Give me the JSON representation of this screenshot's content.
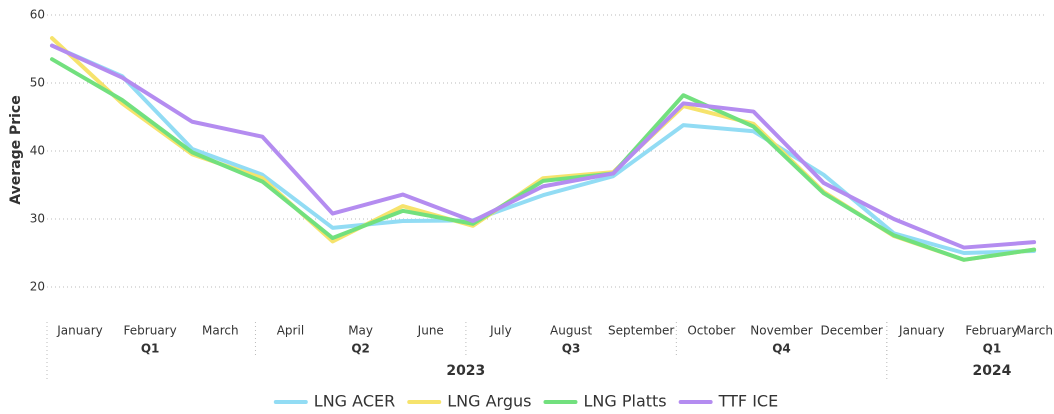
{
  "chart_data": {
    "type": "line",
    "y_label": "Average Price",
    "categories": [
      "January",
      "February",
      "March",
      "April",
      "May",
      "June",
      "July",
      "August",
      "September",
      "October",
      "November",
      "December",
      "January",
      "February",
      "March"
    ],
    "quarters": [
      {
        "label": "Q1",
        "start": 0,
        "end": 2
      },
      {
        "label": "Q2",
        "start": 3,
        "end": 5
      },
      {
        "label": "Q3",
        "start": 6,
        "end": 8
      },
      {
        "label": "Q4",
        "start": 9,
        "end": 11
      },
      {
        "label": "Q1",
        "start": 12,
        "end": 14
      }
    ],
    "years": [
      {
        "label": "2023",
        "start": 0,
        "end": 11
      },
      {
        "label": "2024",
        "start": 12,
        "end": 14
      }
    ],
    "series": [
      {
        "name": "LNG ACER",
        "color": "#92dcf4",
        "values": [
          55.5,
          51,
          40.3,
          36.5,
          28.7,
          29.7,
          29.8,
          33.5,
          36.3,
          43.8,
          42.9,
          36.5,
          27.9,
          25,
          25.3
        ]
      },
      {
        "name": "LNG Argus",
        "color": "#f6e36c",
        "values": [
          56.6,
          47,
          39.5,
          36,
          26.7,
          31.9,
          29,
          36,
          36.9,
          46.6,
          44,
          34,
          27.5,
          24,
          25.5
        ]
      },
      {
        "name": "LNG Platts",
        "color": "#72e07e",
        "values": [
          53.5,
          47.5,
          39.8,
          35.5,
          27.2,
          31.2,
          29.3,
          35.6,
          36.7,
          48.2,
          43.6,
          33.8,
          27.6,
          24,
          25.5
        ]
      },
      {
        "name": "TTF ICE",
        "color": "#b48cf0",
        "values": [
          55.5,
          50.8,
          44.3,
          42.1,
          30.8,
          33.6,
          29.7,
          34.8,
          36.7,
          47,
          45.8,
          35.3,
          30,
          25.8,
          26.6
        ]
      }
    ],
    "ylim": [
      20,
      60
    ],
    "yticks": [
      20,
      30,
      40,
      50,
      60
    ],
    "grid": true,
    "legend": "bottom"
  }
}
